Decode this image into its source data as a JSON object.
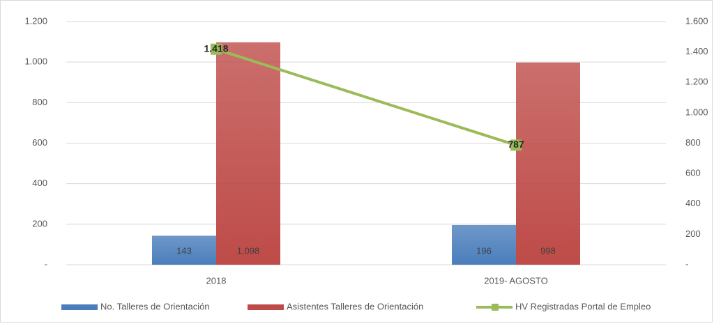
{
  "chart_data": {
    "type": "bar_line",
    "categories": [
      "2018",
      "2019- AGOSTO"
    ],
    "series": [
      {
        "name": "No. Talleres de Orientación",
        "color": "#4a7ebb",
        "type": "bar",
        "values": [
          143,
          196
        ]
      },
      {
        "name": "Asistentes Talleres de Orientación",
        "color": "#be4b48",
        "type": "bar",
        "values": [
          1098,
          998
        ],
        "value_labels": [
          "1.098",
          "998"
        ]
      },
      {
        "name": "HV Registradas Portal de Empleo",
        "color": "#9bbb59",
        "type": "line",
        "axis": "y2",
        "values": [
          1418,
          787
        ],
        "value_labels": [
          "1.418",
          "787"
        ]
      }
    ],
    "ylim": [
      0,
      1200
    ],
    "yticks": [
      {
        "value": 0,
        "label": "-"
      },
      200,
      400,
      600,
      800,
      {
        "value": 1000,
        "label": "1.000"
      },
      {
        "value": 1200,
        "label": "1.200"
      }
    ],
    "y2lim": [
      0,
      1600
    ],
    "y2ticks": [
      {
        "value": 0,
        "label": "-"
      },
      200,
      400,
      600,
      800,
      {
        "value": 1000,
        "label": "1.000"
      },
      {
        "value": 1200,
        "label": "1.200"
      },
      {
        "value": 1400,
        "label": "1.400"
      },
      {
        "value": 1600,
        "label": "1.600"
      }
    ],
    "grid": true,
    "legend": "bottom"
  }
}
